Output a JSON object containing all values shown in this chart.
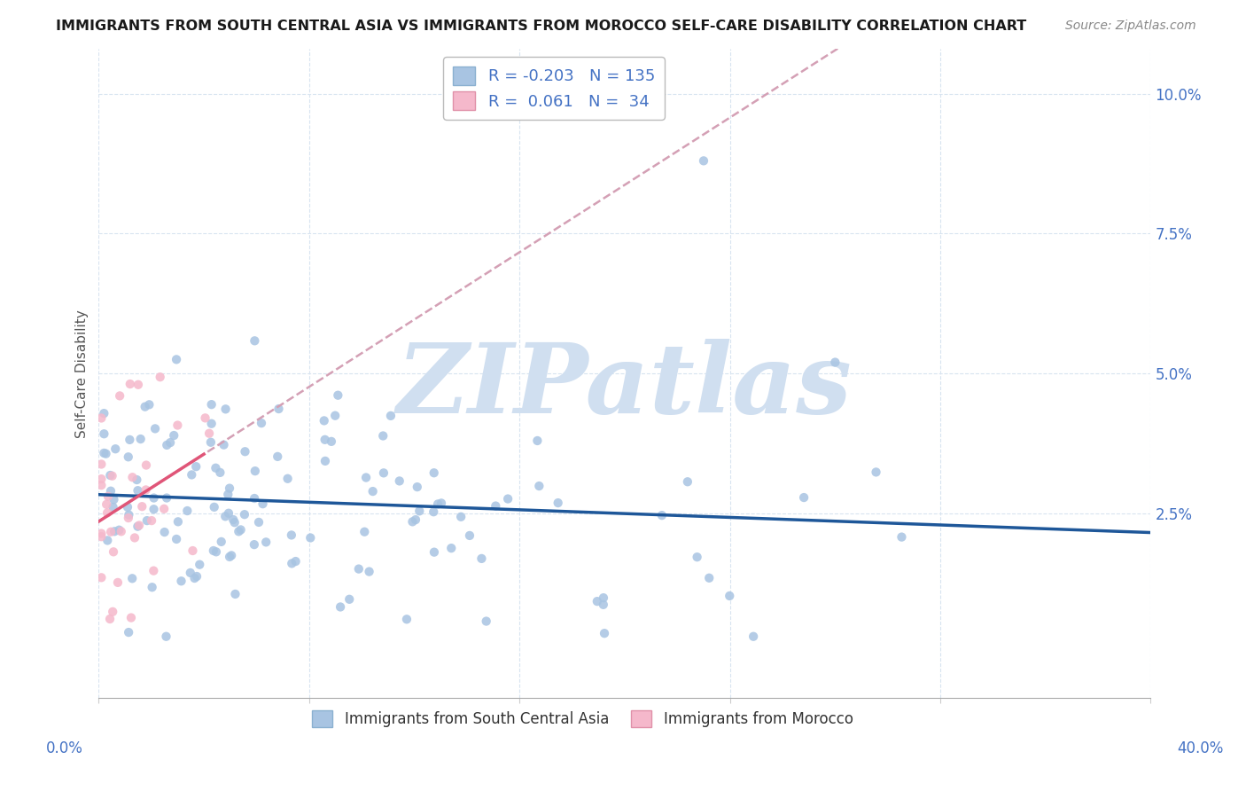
{
  "title": "IMMIGRANTS FROM SOUTH CENTRAL ASIA VS IMMIGRANTS FROM MOROCCO SELF-CARE DISABILITY CORRELATION CHART",
  "source": "Source: ZipAtlas.com",
  "ylabel": "Self-Care Disability",
  "xlim": [
    0.0,
    0.4
  ],
  "ylim": [
    -0.008,
    0.108
  ],
  "blue_R": -0.203,
  "blue_N": 135,
  "pink_R": 0.061,
  "pink_N": 34,
  "blue_color": "#a8c4e2",
  "blue_line_color": "#1e5799",
  "pink_color": "#f5b8cb",
  "pink_line_color": "#e05578",
  "pink_dash_color": "#d4a0b5",
  "watermark_color": "#d0dff0",
  "legend_label_blue": "Immigrants from South Central Asia",
  "legend_label_pink": "Immigrants from Morocco",
  "grid_color": "#d8e4f0",
  "axis_color": "#cccccc",
  "tick_label_color": "#4472c4",
  "title_color": "#1a1a1a",
  "source_color": "#888888",
  "ylabel_color": "#555555"
}
